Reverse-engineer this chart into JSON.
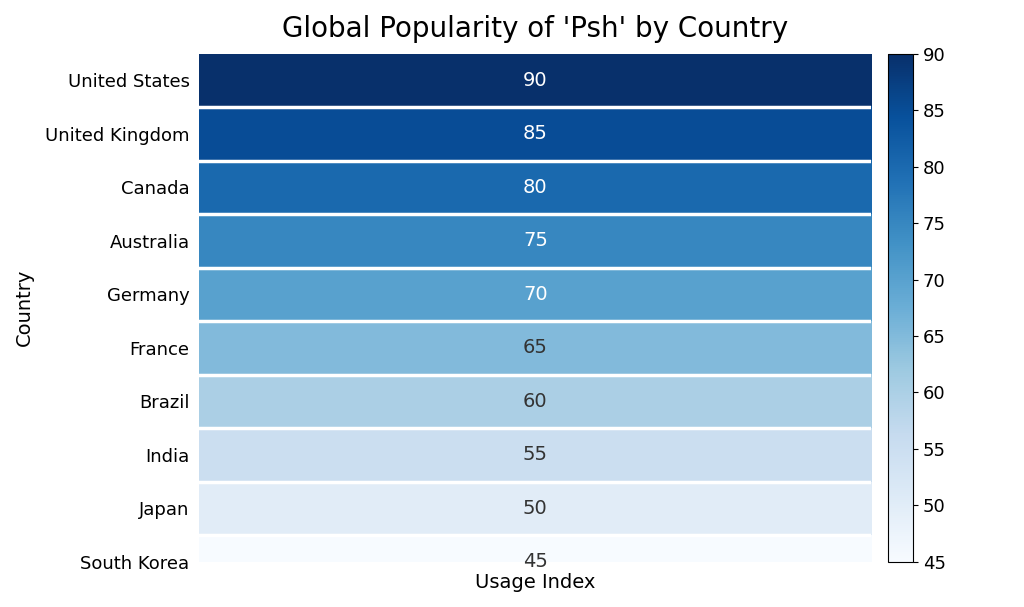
{
  "title": "Global Popularity of 'Psh' by Country",
  "xlabel": "Usage Index",
  "ylabel": "Country",
  "countries": [
    "United States",
    "United Kingdom",
    "Canada",
    "Australia",
    "Germany",
    "France",
    "Brazil",
    "India",
    "Japan",
    "South Korea"
  ],
  "values": [
    90,
    85,
    80,
    75,
    70,
    65,
    60,
    55,
    50,
    45
  ],
  "vmin": 45,
  "vmax": 90,
  "colormap": "Blues",
  "text_color_threshold": 68,
  "white_text_color": "#ffffff",
  "dark_text_color": "#333333",
  "linecolor": "white",
  "linewidth": 2.5,
  "title_fontsize": 20,
  "label_fontsize": 14,
  "tick_fontsize": 13,
  "value_fontsize": 14,
  "background_color": "#ffffff",
  "cbar_tick_fontsize": 13
}
